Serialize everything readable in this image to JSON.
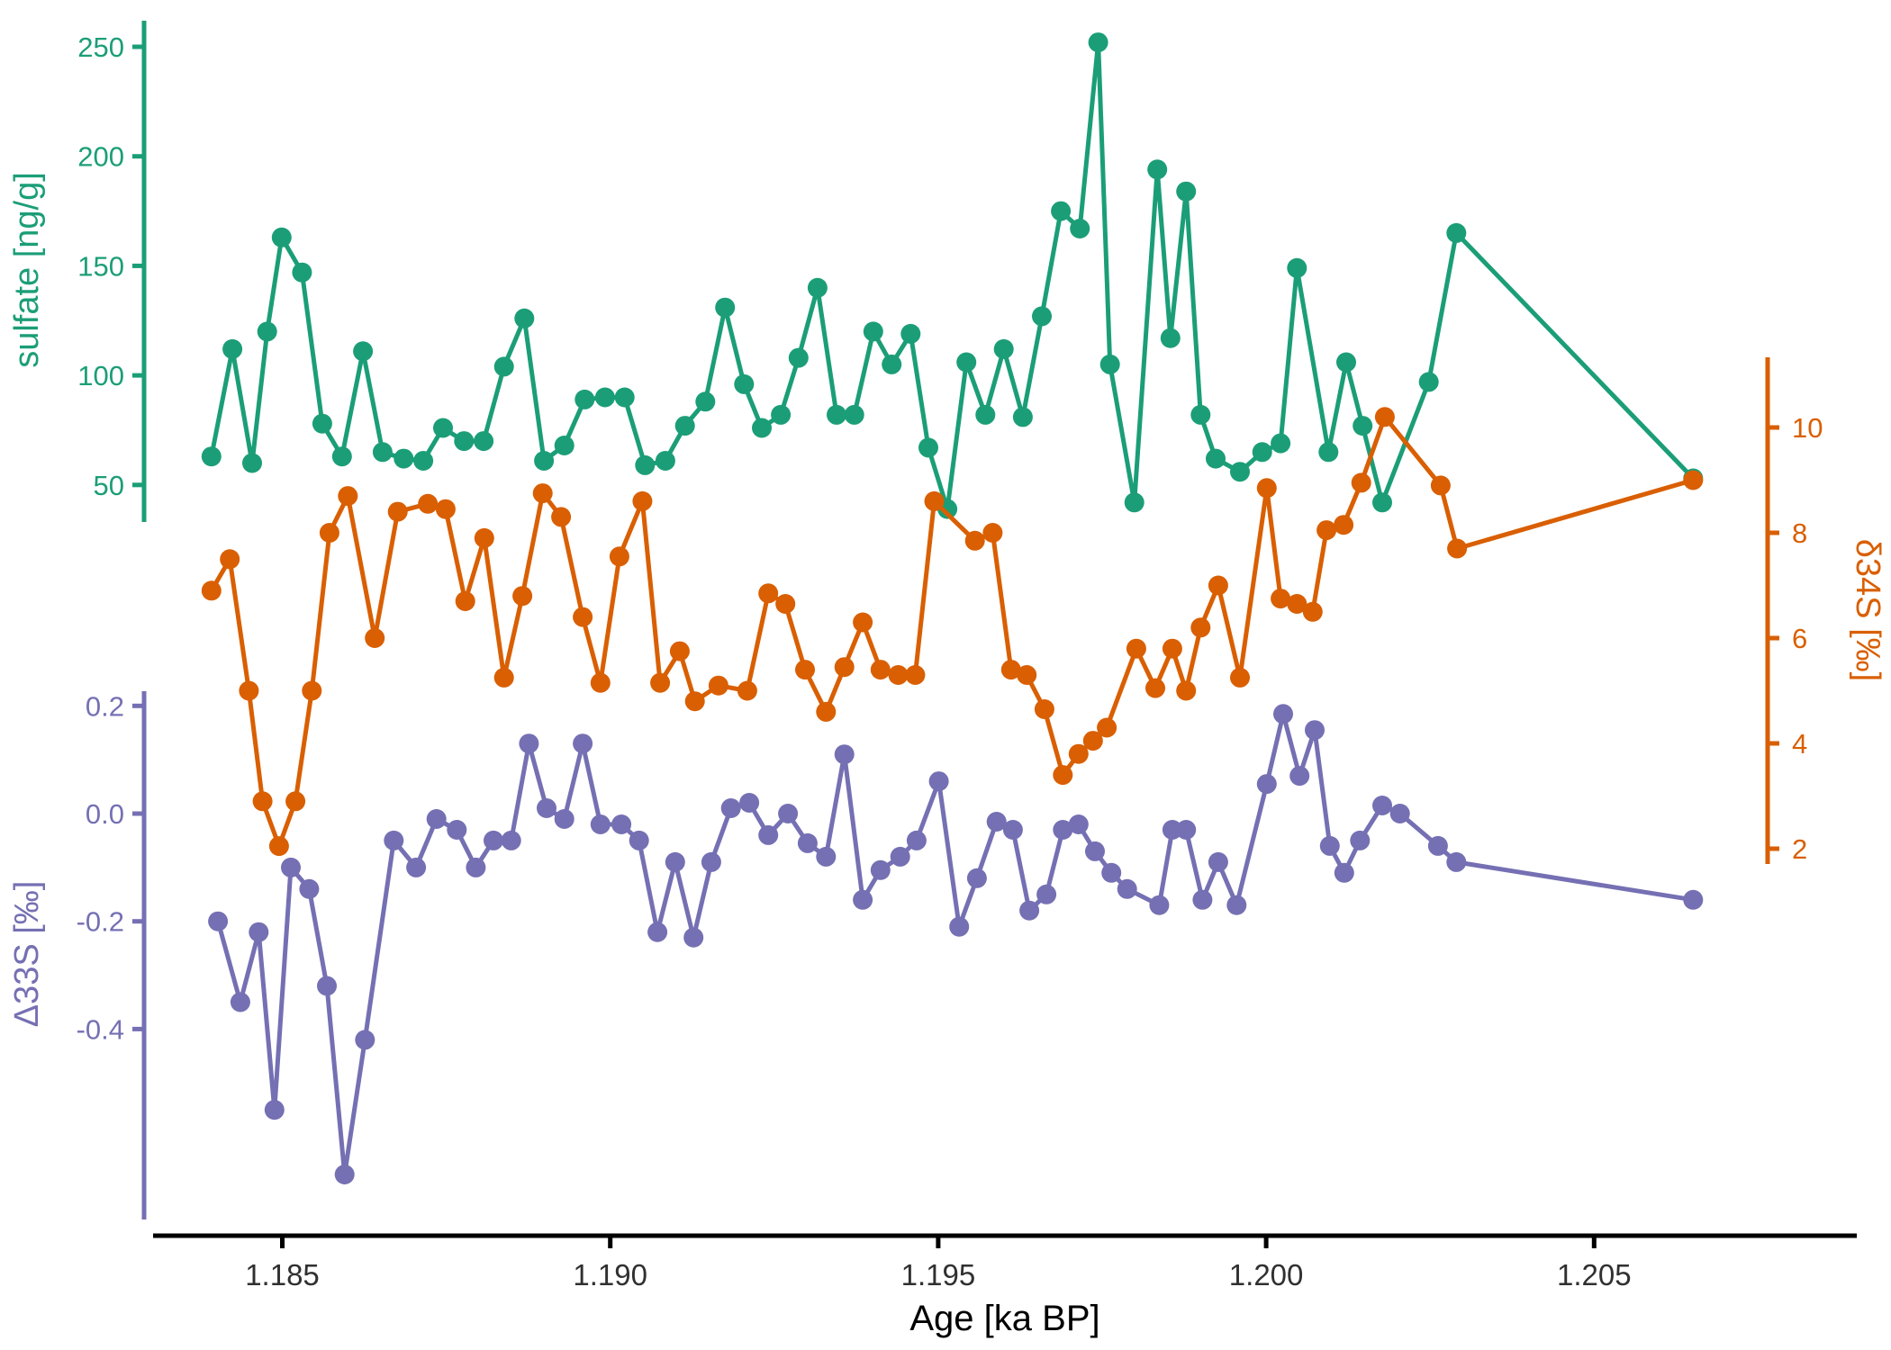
{
  "chart_data": {
    "type": "line",
    "title": "",
    "xlabel": "Age [ka BP]",
    "x_ticks": [
      1.185,
      1.19,
      1.195,
      1.2,
      1.205
    ],
    "x_range_ka": [
      1.183,
      1.209
    ],
    "grid": "off",
    "legend": "none (axes colored per series)",
    "series": [
      {
        "id": "sulfate",
        "ylabel": "sulfate [ng/g]",
        "color": "#1b9e77",
        "axis_side": "left-top",
        "y_ticks": [
          250,
          200,
          150,
          100,
          50
        ],
        "y_range": [
          30,
          260
        ],
        "points": [
          [
            1.18392,
            63
          ],
          [
            1.18424,
            112
          ],
          [
            1.18454,
            60
          ],
          [
            1.18477,
            120
          ],
          [
            1.18499,
            163
          ],
          [
            1.1853,
            147
          ],
          [
            1.18561,
            78
          ],
          [
            1.18591,
            63
          ],
          [
            1.18623,
            111
          ],
          [
            1.18653,
            65
          ],
          [
            1.18685,
            62
          ],
          [
            1.18715,
            61
          ],
          [
            1.18745,
            76
          ],
          [
            1.18777,
            70
          ],
          [
            1.18807,
            70
          ],
          [
            1.18838,
            104
          ],
          [
            1.18869,
            126
          ],
          [
            1.18899,
            61
          ],
          [
            1.1893,
            68
          ],
          [
            1.18961,
            89
          ],
          [
            1.18992,
            90
          ],
          [
            1.19022,
            90
          ],
          [
            1.19053,
            59
          ],
          [
            1.19084,
            61
          ],
          [
            1.19114,
            77
          ],
          [
            1.19145,
            88
          ],
          [
            1.19175,
            131
          ],
          [
            1.19204,
            96
          ],
          [
            1.19231,
            76
          ],
          [
            1.1926,
            82
          ],
          [
            1.19287,
            108
          ],
          [
            1.19316,
            140
          ],
          [
            1.19345,
            82
          ],
          [
            1.19372,
            82
          ],
          [
            1.19401,
            120
          ],
          [
            1.19429,
            105
          ],
          [
            1.19458,
            119
          ],
          [
            1.19485,
            67
          ],
          [
            1.19514,
            39
          ],
          [
            1.19543,
            106
          ],
          [
            1.19572,
            82
          ],
          [
            1.196,
            112
          ],
          [
            1.19629,
            81
          ],
          [
            1.19658,
            127
          ],
          [
            1.19687,
            175
          ],
          [
            1.19716,
            167
          ],
          [
            1.19744,
            252
          ],
          [
            1.19762,
            105
          ],
          [
            1.19799,
            42
          ],
          [
            1.19834,
            194
          ],
          [
            1.19854,
            117
          ],
          [
            1.19878,
            184
          ],
          [
            1.199,
            82
          ],
          [
            1.19923,
            62
          ],
          [
            1.1996,
            56
          ],
          [
            1.19994,
            65
          ],
          [
            1.20022,
            69
          ],
          [
            1.20047,
            149
          ],
          [
            1.20095,
            65
          ],
          [
            1.20122,
            106
          ],
          [
            1.20147,
            77
          ],
          [
            1.20177,
            42
          ],
          [
            1.20248,
            97
          ],
          [
            1.2029,
            165
          ],
          [
            1.20651,
            53
          ]
        ]
      },
      {
        "id": "d34S",
        "ylabel": "δ34S [‰]",
        "color": "#d95f02",
        "axis_side": "right",
        "y_ticks": [
          10,
          8,
          6,
          4,
          2
        ],
        "y_range": [
          1.5,
          11.0
        ],
        "points": [
          [
            1.18392,
            6.9
          ],
          [
            1.1842,
            7.5
          ],
          [
            1.18449,
            5.0
          ],
          [
            1.1847,
            2.9
          ],
          [
            1.18495,
            2.05
          ],
          [
            1.1852,
            2.9
          ],
          [
            1.18545,
            5.0
          ],
          [
            1.18572,
            8.0
          ],
          [
            1.186,
            8.7
          ],
          [
            1.18641,
            6.0
          ],
          [
            1.18676,
            8.4
          ],
          [
            1.18722,
            8.55
          ],
          [
            1.18749,
            8.45
          ],
          [
            1.18779,
            6.7
          ],
          [
            1.18808,
            7.9
          ],
          [
            1.18838,
            5.25
          ],
          [
            1.18866,
            6.8
          ],
          [
            1.18897,
            8.75
          ],
          [
            1.18925,
            8.3
          ],
          [
            1.18958,
            6.4
          ],
          [
            1.18985,
            5.15
          ],
          [
            1.19014,
            7.55
          ],
          [
            1.19049,
            8.6
          ],
          [
            1.19076,
            5.15
          ],
          [
            1.19106,
            5.75
          ],
          [
            1.19129,
            4.8
          ],
          [
            1.19165,
            5.1
          ],
          [
            1.19209,
            5.0
          ],
          [
            1.19241,
            6.85
          ],
          [
            1.19267,
            6.65
          ],
          [
            1.19297,
            5.4
          ],
          [
            1.19329,
            4.6
          ],
          [
            1.19357,
            5.45
          ],
          [
            1.19385,
            6.3
          ],
          [
            1.19412,
            5.4
          ],
          [
            1.19439,
            5.3
          ],
          [
            1.19465,
            5.3
          ],
          [
            1.19494,
            8.6
          ],
          [
            1.19556,
            7.85
          ],
          [
            1.19583,
            8.0
          ],
          [
            1.19611,
            5.4
          ],
          [
            1.19635,
            5.3
          ],
          [
            1.19662,
            4.65
          ],
          [
            1.1969,
            3.4
          ],
          [
            1.19714,
            3.8
          ],
          [
            1.19736,
            4.05
          ],
          [
            1.19757,
            4.3
          ],
          [
            1.19802,
            5.8
          ],
          [
            1.19831,
            5.05
          ],
          [
            1.19857,
            5.8
          ],
          [
            1.19878,
            5.0
          ],
          [
            1.199,
            6.2
          ],
          [
            1.19927,
            7.0
          ],
          [
            1.1996,
            5.25
          ],
          [
            1.20001,
            8.85
          ],
          [
            1.20022,
            6.75
          ],
          [
            1.20047,
            6.65
          ],
          [
            1.20071,
            6.5
          ],
          [
            1.20092,
            8.05
          ],
          [
            1.20118,
            8.15
          ],
          [
            1.20145,
            8.95
          ],
          [
            1.20181,
            10.2
          ],
          [
            1.20266,
            8.9
          ],
          [
            1.20291,
            7.7
          ],
          [
            1.20651,
            9.0
          ]
        ]
      },
      {
        "id": "D33S",
        "ylabel": "Δ33S [‰]",
        "color": "#7570b3",
        "axis_side": "left-bottom",
        "y_ticks": [
          0.2,
          0.0,
          -0.2,
          -0.4
        ],
        "y_range": [
          -0.7,
          0.25
        ],
        "points": [
          [
            1.18402,
            -0.2
          ],
          [
            1.18436,
            -0.35
          ],
          [
            1.18464,
            -0.22
          ],
          [
            1.18488,
            -0.55
          ],
          [
            1.18513,
            -0.1
          ],
          [
            1.18541,
            -0.14
          ],
          [
            1.18568,
            -0.32
          ],
          [
            1.18595,
            -0.67
          ],
          [
            1.18626,
            -0.42
          ],
          [
            1.1867,
            -0.05
          ],
          [
            1.18704,
            -0.1
          ],
          [
            1.18735,
            -0.01
          ],
          [
            1.18766,
            -0.03
          ],
          [
            1.18795,
            -0.1
          ],
          [
            1.18822,
            -0.05
          ],
          [
            1.18849,
            -0.05
          ],
          [
            1.18876,
            0.13
          ],
          [
            1.18903,
            0.01
          ],
          [
            1.1893,
            -0.01
          ],
          [
            1.18958,
            0.13
          ],
          [
            1.18985,
            -0.02
          ],
          [
            1.19017,
            -0.02
          ],
          [
            1.19044,
            -0.05
          ],
          [
            1.19072,
            -0.22
          ],
          [
            1.19099,
            -0.09
          ],
          [
            1.19127,
            -0.23
          ],
          [
            1.19154,
            -0.09
          ],
          [
            1.19184,
            0.01
          ],
          [
            1.19212,
            0.02
          ],
          [
            1.19241,
            -0.04
          ],
          [
            1.19271,
            0.0
          ],
          [
            1.19301,
            -0.055
          ],
          [
            1.19329,
            -0.08
          ],
          [
            1.19357,
            0.11
          ],
          [
            1.19385,
            -0.16
          ],
          [
            1.19412,
            -0.105
          ],
          [
            1.19442,
            -0.08
          ],
          [
            1.19467,
            -0.05
          ],
          [
            1.19501,
            0.06
          ],
          [
            1.19532,
            -0.21
          ],
          [
            1.19559,
            -0.12
          ],
          [
            1.19589,
            -0.015
          ],
          [
            1.19614,
            -0.03
          ],
          [
            1.19639,
            -0.18
          ],
          [
            1.19665,
            -0.15
          ],
          [
            1.1969,
            -0.03
          ],
          [
            1.19714,
            -0.02
          ],
          [
            1.19739,
            -0.07
          ],
          [
            1.19764,
            -0.11
          ],
          [
            1.19788,
            -0.14
          ],
          [
            1.19837,
            -0.17
          ],
          [
            1.19857,
            -0.03
          ],
          [
            1.19878,
            -0.03
          ],
          [
            1.19903,
            -0.16
          ],
          [
            1.19927,
            -0.09
          ],
          [
            1.19955,
            -0.17
          ],
          [
            1.20001,
            0.055
          ],
          [
            1.20026,
            0.185
          ],
          [
            1.20051,
            0.07
          ],
          [
            1.20074,
            0.155
          ],
          [
            1.20097,
            -0.06
          ],
          [
            1.20119,
            -0.11
          ],
          [
            1.20143,
            -0.05
          ],
          [
            1.20177,
            0.015
          ],
          [
            1.20204,
            0.0
          ],
          [
            1.20262,
            -0.06
          ],
          [
            1.2029,
            -0.09
          ],
          [
            1.20651,
            -0.16
          ]
        ]
      }
    ],
    "x_axis_color": "#000000",
    "x_tick_label_color": "#303030"
  }
}
